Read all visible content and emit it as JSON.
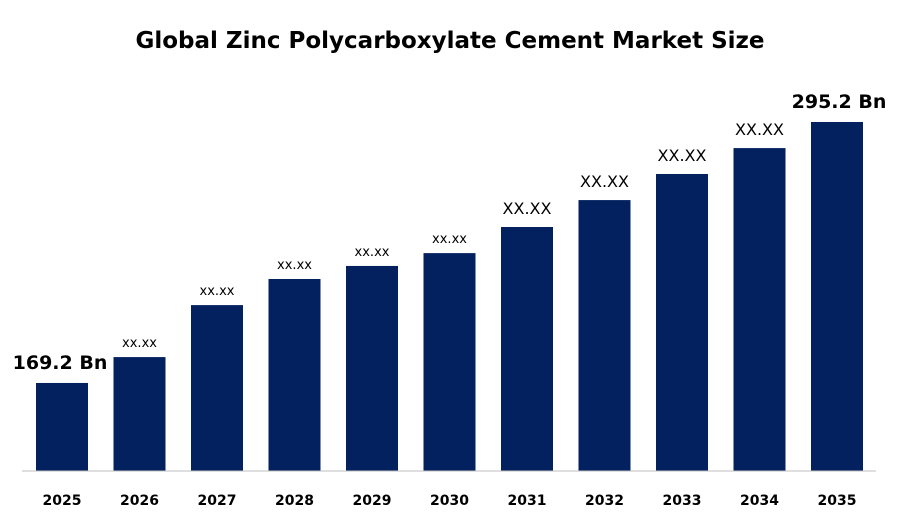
{
  "chart_data": {
    "type": "bar",
    "title": "Global Zinc Polycarboxylate Cement Market Size",
    "xlabel": "",
    "ylabel": "",
    "categories": [
      "2025",
      "2026",
      "2027",
      "2028",
      "2029",
      "2030",
      "2031",
      "2032",
      "2033",
      "2034",
      "2035"
    ],
    "values": [
      169.2,
      181.7,
      206.8,
      219.4,
      225.7,
      231.9,
      244.5,
      257.5,
      270.1,
      282.6,
      295.2
    ],
    "data_labels": [
      "169.2 Bn",
      "xx.xx",
      "xx.xx",
      "xx.xx",
      "xx.xx",
      "xx.xx",
      "XX.XX",
      "XX.XX",
      "XX.XX",
      "XX.XX",
      "295.2 Bn"
    ],
    "ylim": [
      127,
      300
    ],
    "grid": false,
    "legend": "none",
    "bar_color": "#03215F",
    "axis_color": "#BFBFBF"
  }
}
